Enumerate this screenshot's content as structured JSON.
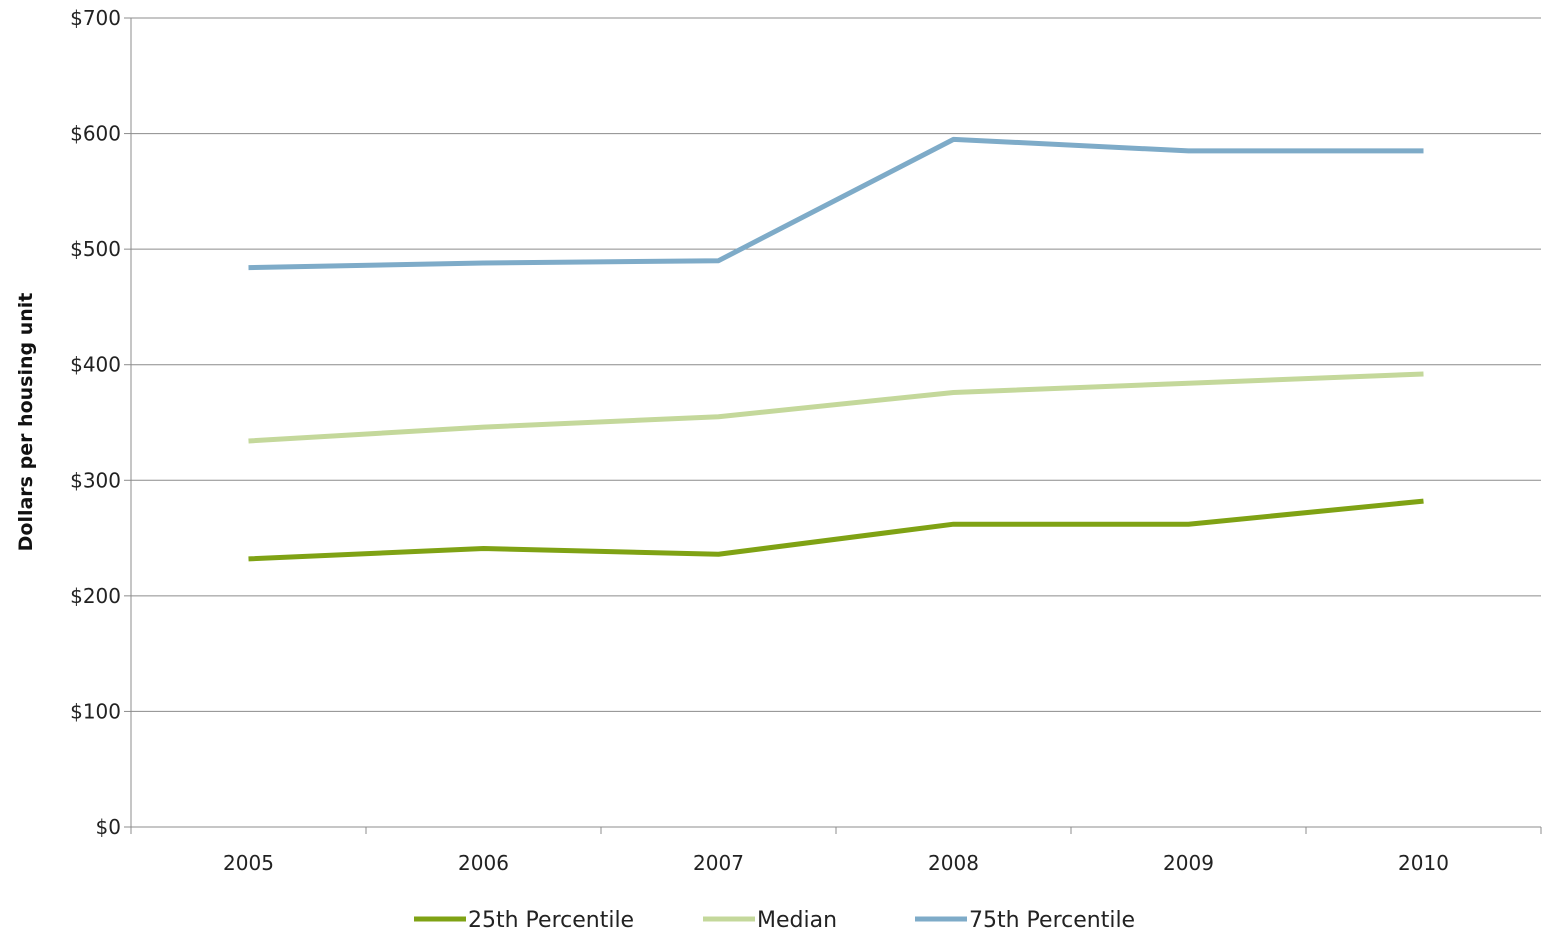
{
  "chart_data": {
    "type": "line",
    "title": "",
    "xlabel": "",
    "ylabel": "Dollars per housing unit",
    "categories": [
      "2005",
      "2006",
      "2007",
      "2008",
      "2009",
      "2010"
    ],
    "ylim": [
      0,
      700
    ],
    "y_ticks": [
      0,
      100,
      200,
      300,
      400,
      500,
      600,
      700
    ],
    "y_tick_labels": [
      "$0",
      "$100",
      "$200",
      "$300",
      "$400",
      "$500",
      "$600",
      "$700"
    ],
    "grid": "horizontal",
    "legend_position": "bottom",
    "series": [
      {
        "name": "25th Percentile",
        "color": "#7fa214",
        "values": [
          232,
          241,
          236,
          262,
          262,
          282
        ]
      },
      {
        "name": "Median",
        "color": "#c4d89b",
        "values": [
          334,
          346,
          355,
          376,
          384,
          392
        ]
      },
      {
        "name": "75th Percentile",
        "color": "#7eabc8",
        "values": [
          484,
          488,
          490,
          595,
          585,
          585
        ]
      }
    ]
  }
}
